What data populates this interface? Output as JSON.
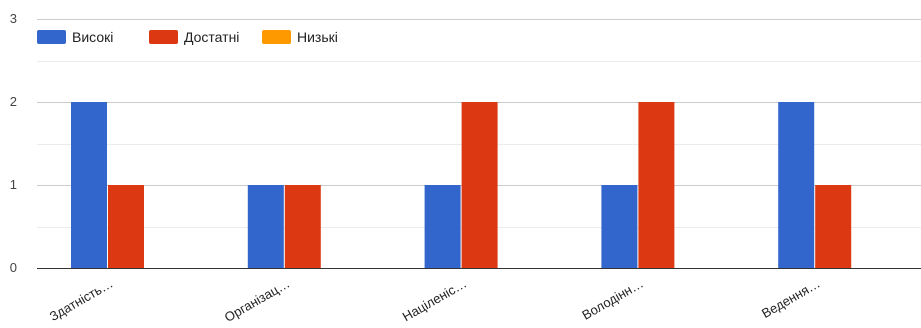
{
  "chart_data": {
    "type": "bar",
    "title": "",
    "xlabel": "",
    "ylabel": "",
    "categories": [
      "Здатність…",
      "Організац…",
      "Націленіс…",
      "Володінн…",
      "Ведення…"
    ],
    "series": [
      {
        "name": "Високі",
        "color": "#3366cc",
        "values": [
          2,
          1,
          1,
          1,
          2
        ]
      },
      {
        "name": "Достатні",
        "color": "#dc3912",
        "values": [
          1,
          1,
          2,
          2,
          1
        ]
      },
      {
        "name": "Низькі",
        "color": "#ff9900",
        "values": [
          0,
          0,
          0,
          0,
          0
        ]
      }
    ],
    "ylim": [
      0,
      3
    ],
    "yticks": [
      0,
      1,
      2,
      3
    ],
    "grid": true,
    "legend_position": "top-left"
  }
}
